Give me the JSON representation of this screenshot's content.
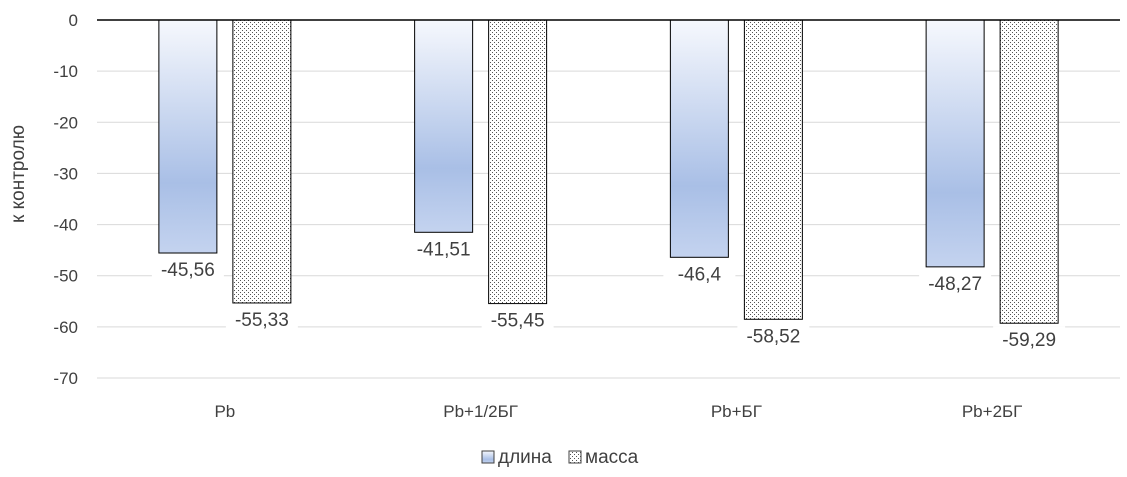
{
  "chart_data": {
    "type": "bar",
    "title": "",
    "xlabel": "",
    "ylabel": "к контролю",
    "categories": [
      "Pb",
      "Pb+1/2БГ",
      "Pb+БГ",
      "Pb+2БГ"
    ],
    "series": [
      {
        "name": "длина",
        "values": [
          -45.56,
          -41.51,
          -46.4,
          -48.27
        ],
        "labels": [
          "-45,56",
          "-41,51",
          "-46,4",
          "-48,27"
        ],
        "fill": "gradient-blue",
        "color": "#a9bfe6"
      },
      {
        "name": "масса",
        "values": [
          -55.33,
          -55.45,
          -58.52,
          -59.29
        ],
        "labels": [
          "-55,33",
          "-55,45",
          "-58,52",
          "-59,29"
        ],
        "fill": "dotted-pattern",
        "color": "#ffffff"
      }
    ],
    "ylim": [
      -70,
      0
    ],
    "yticks": [
      0,
      -10,
      -20,
      -30,
      -40,
      -50,
      -60,
      -70
    ],
    "grid": true,
    "legend_position": "bottom"
  }
}
